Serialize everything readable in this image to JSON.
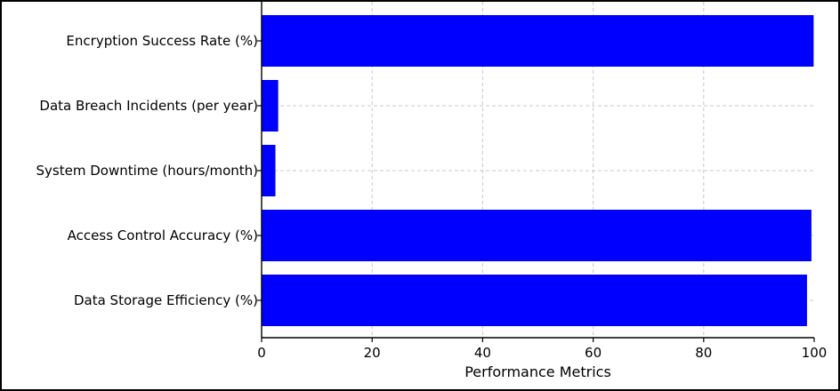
{
  "chart_data": {
    "type": "bar",
    "orientation": "horizontal",
    "categories": [
      "Encryption Success Rate (%)",
      "Data Breach Incidents (per year)",
      "System Downtime (hours/month)",
      "Access Control Accuracy (%)",
      "Data Storage Efficiency (%)"
    ],
    "values": [
      99.9,
      3,
      2.5,
      99.5,
      98.7
    ],
    "title": "",
    "xlabel": "Performance Metrics",
    "ylabel": "",
    "xlim": [
      0,
      100
    ],
    "xticks": [
      "0",
      "20",
      "40",
      "60",
      "80",
      "100"
    ],
    "grid": true,
    "bar_color": "#0000ff"
  }
}
